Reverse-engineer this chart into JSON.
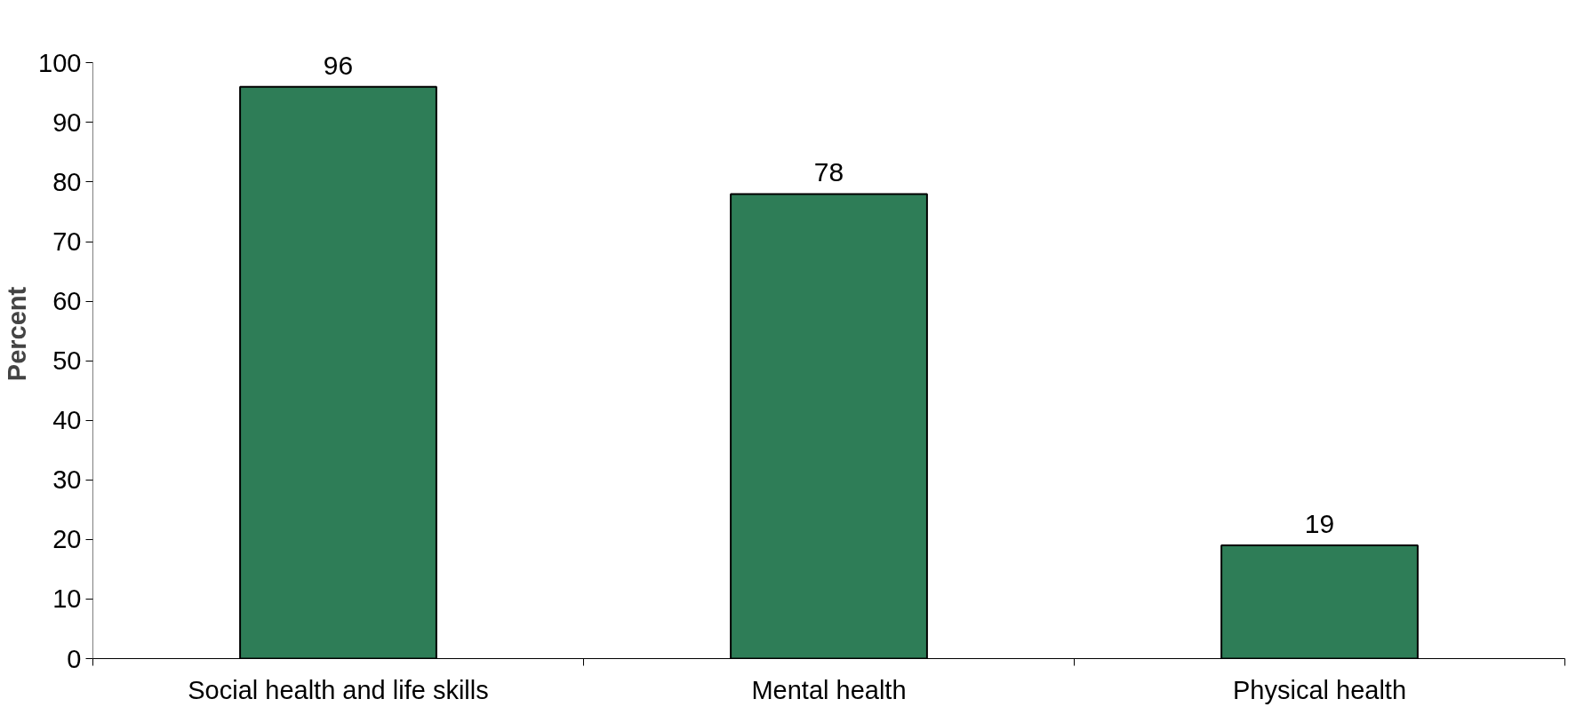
{
  "chart_data": {
    "type": "bar",
    "ylabel": "Percent",
    "categories": [
      "Social health and life skills",
      "Mental health",
      "Physical health"
    ],
    "values": [
      96,
      78,
      19
    ],
    "color": "#2e7d57",
    "ylim": [
      0,
      100
    ],
    "yticks": [
      0,
      10,
      20,
      30,
      40,
      50,
      60,
      70,
      80,
      90,
      100
    ],
    "data_labels": true,
    "grid": false
  }
}
